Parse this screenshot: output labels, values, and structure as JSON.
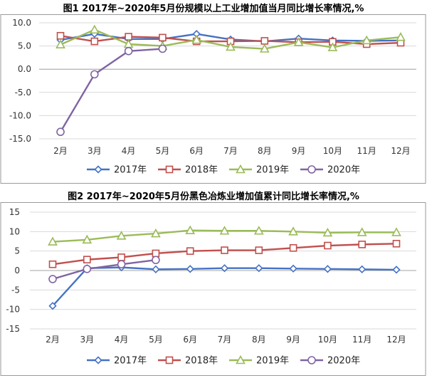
{
  "chart_data": [
    {
      "type": "line",
      "title": "图1 2017年~2020年5月份规模以上工业增加值当月同比增长率情况,%",
      "categories": [
        "2月",
        "3月",
        "4月",
        "5月",
        "6月",
        "7月",
        "8月",
        "9月",
        "10月",
        "11月",
        "12月"
      ],
      "ylim": [
        -15,
        10
      ],
      "yticks": [
        "10.0",
        "5.0",
        "0.0",
        "-5.0",
        "-10.0",
        "-15.0"
      ],
      "yticks_values": [
        10,
        5,
        0,
        -5,
        -10,
        -15
      ],
      "legend_position": "bottom",
      "series": [
        {
          "name": "2017年",
          "color": "#4472c4",
          "marker": "diamond",
          "values": [
            6.3,
            7.6,
            6.5,
            6.5,
            7.6,
            6.4,
            6.0,
            6.6,
            6.2,
            6.1,
            6.2
          ]
        },
        {
          "name": "2018年",
          "color": "#c0504d",
          "marker": "square",
          "values": [
            7.2,
            6.0,
            7.0,
            6.8,
            6.0,
            6.0,
            6.1,
            5.8,
            5.9,
            5.4,
            5.7
          ]
        },
        {
          "name": "2019年",
          "color": "#9bbb59",
          "marker": "triangle",
          "values": [
            5.3,
            8.5,
            5.4,
            5.0,
            6.3,
            4.8,
            4.4,
            5.8,
            4.7,
            6.2,
            6.9
          ]
        },
        {
          "name": "2020年",
          "color": "#8064a2",
          "marker": "circle",
          "values": [
            -13.5,
            -1.1,
            3.9,
            4.4,
            null,
            null,
            null,
            null,
            null,
            null,
            null
          ]
        }
      ]
    },
    {
      "type": "line",
      "title": "图2 2017年~2020年5月份黑色冶炼业增加值累计同比增长率情况,%",
      "categories": [
        "2月",
        "3月",
        "4月",
        "5月",
        "6月",
        "7月",
        "8月",
        "9月",
        "10月",
        "11月",
        "12月"
      ],
      "ylim": [
        -15,
        15
      ],
      "yticks": [
        "15",
        "10",
        "5",
        "0",
        "-5",
        "-10",
        "-15"
      ],
      "yticks_values": [
        15,
        10,
        5,
        0,
        -5,
        -10,
        -15
      ],
      "legend_position": "bottom",
      "series": [
        {
          "name": "2017年",
          "color": "#4472c4",
          "marker": "diamond",
          "values": [
            -9.1,
            0.6,
            0.8,
            0.3,
            0.4,
            0.6,
            0.6,
            0.5,
            0.4,
            0.3,
            0.2
          ]
        },
        {
          "name": "2018年",
          "color": "#c0504d",
          "marker": "square",
          "values": [
            1.6,
            2.8,
            3.4,
            4.4,
            5.0,
            5.2,
            5.2,
            5.8,
            6.4,
            6.7,
            6.9
          ]
        },
        {
          "name": "2019年",
          "color": "#9bbb59",
          "marker": "triangle",
          "values": [
            7.4,
            7.9,
            8.9,
            9.5,
            10.3,
            10.2,
            10.2,
            10.0,
            9.7,
            9.8,
            9.8
          ]
        },
        {
          "name": "2020年",
          "color": "#8064a2",
          "marker": "circle",
          "values": [
            -2.2,
            0.4,
            1.6,
            2.7,
            null,
            null,
            null,
            null,
            null,
            null,
            null
          ]
        }
      ]
    }
  ]
}
